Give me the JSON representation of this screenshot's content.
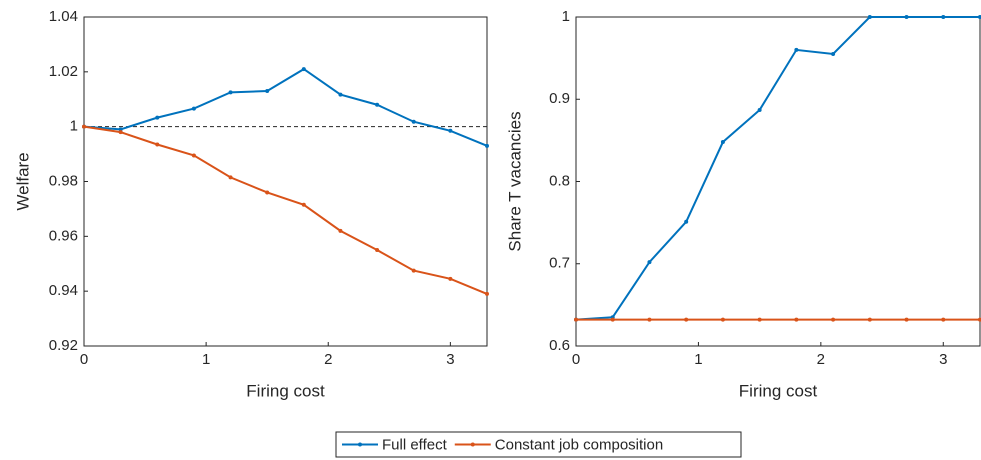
{
  "chart_data": [
    {
      "type": "line",
      "xlabel": "Firing cost",
      "ylabel": "Welfare",
      "x": [
        0,
        0.3,
        0.6,
        0.9,
        1.2,
        1.5,
        1.8,
        2.1,
        2.4,
        2.7,
        3.0,
        3.3
      ],
      "xlim": [
        0,
        3.3
      ],
      "xticks": [
        0,
        1,
        2,
        3
      ],
      "ylim": [
        0.92,
        1.04
      ],
      "yticks": [
        0.92,
        0.94,
        0.96,
        0.98,
        1,
        1.02,
        1.04
      ],
      "hline": 1,
      "series": [
        {
          "name": "Full effect",
          "color": "#0072bd",
          "values": [
            1,
            0.999,
            1.0033,
            1.0066,
            1.0125,
            1.013,
            1.021,
            1.0117,
            1.008,
            1.0018,
            0.9985,
            0.993
          ]
        },
        {
          "name": "Constant job composition",
          "color": "#d95319",
          "values": [
            1,
            0.998,
            0.9935,
            0.9895,
            0.9815,
            0.976,
            0.9715,
            0.962,
            0.955,
            0.9475,
            0.9445,
            0.939
          ]
        }
      ]
    },
    {
      "type": "line",
      "xlabel": "Firing cost",
      "ylabel": "Share T vacancies",
      "x": [
        0,
        0.3,
        0.6,
        0.9,
        1.2,
        1.5,
        1.8,
        2.1,
        2.4,
        2.7,
        3.0,
        3.3
      ],
      "xlim": [
        0,
        3.3
      ],
      "xticks": [
        0,
        1,
        2,
        3
      ],
      "ylim": [
        0.6,
        1
      ],
      "yticks": [
        0.6,
        0.7,
        0.8,
        0.9,
        1
      ],
      "series": [
        {
          "name": "Full effect",
          "color": "#0072bd",
          "values": [
            0.632,
            0.635,
            0.702,
            0.751,
            0.848,
            0.887,
            0.96,
            0.955,
            1,
            1,
            1,
            1
          ]
        },
        {
          "name": "Constant job composition",
          "color": "#d95319",
          "values": [
            0.632,
            0.632,
            0.632,
            0.632,
            0.632,
            0.632,
            0.632,
            0.632,
            0.632,
            0.632,
            0.632,
            0.632
          ]
        }
      ]
    }
  ]
}
